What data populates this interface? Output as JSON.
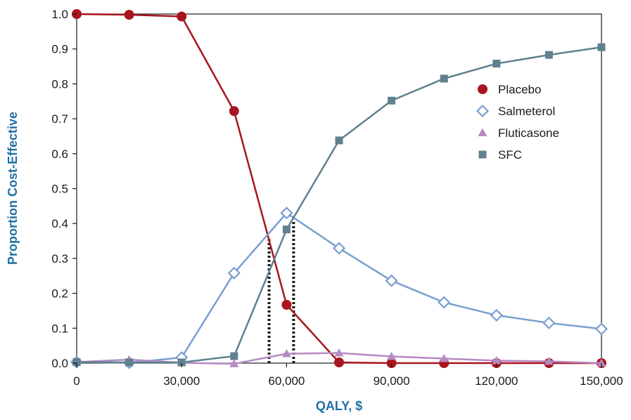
{
  "chart_data": {
    "type": "line",
    "xlabel": "QALY, $",
    "ylabel": "Proportion Cost-Effective",
    "xlim": [
      0,
      150000
    ],
    "ylim": [
      0,
      1.0
    ],
    "x_ticks": [
      0,
      30000,
      60000,
      90000,
      120000,
      150000
    ],
    "x_tick_labels": [
      "0",
      "30,000",
      "60,000",
      "90,000",
      "120,000",
      "150,000"
    ],
    "y_ticks": [
      0.0,
      0.1,
      0.2,
      0.3,
      0.4,
      0.5,
      0.6,
      0.7,
      0.8,
      0.9,
      1.0
    ],
    "y_tick_labels": [
      "0.0",
      "0.1",
      "0.2",
      "0.3",
      "0.4",
      "0.5",
      "0.6",
      "0.7",
      "0.8",
      "0.9",
      "1.0"
    ],
    "x": [
      0,
      15000,
      30000,
      45000,
      60000,
      75000,
      90000,
      105000,
      120000,
      135000,
      150000
    ],
    "series": [
      {
        "name": "Placebo",
        "marker": "circle",
        "color": "#a8151e",
        "values": [
          1.0,
          0.998,
          0.993,
          0.722,
          0.167,
          0.002,
          0.0,
          0.0,
          0.0,
          0.0,
          0.0
        ]
      },
      {
        "name": "Salmeterol",
        "marker": "diamond-open",
        "color": "#7a9fd0",
        "values": [
          0.003,
          0.001,
          0.016,
          0.258,
          0.43,
          0.329,
          0.236,
          0.174,
          0.137,
          0.115,
          0.098
        ]
      },
      {
        "name": "Fluticasone",
        "marker": "triangle",
        "color": "#b58ac4",
        "values": [
          0.003,
          0.01,
          0.001,
          -0.002,
          0.027,
          0.029,
          0.019,
          0.013,
          0.007,
          0.005,
          0.0
        ]
      },
      {
        "name": "SFC",
        "marker": "square",
        "color": "#5f808e",
        "values": [
          0.003,
          0.002,
          0.002,
          0.02,
          0.383,
          0.638,
          0.752,
          0.815,
          0.858,
          0.883,
          0.905
        ]
      }
    ],
    "annotations": [
      {
        "type": "dashed-vertical",
        "x": 55000,
        "y_top": 0.355
      },
      {
        "type": "dashed-vertical",
        "x": 62000,
        "y_top": 0.41
      }
    ],
    "grid": false,
    "legend_position": "top-right",
    "axis_title_color": "#1f6fa3"
  }
}
